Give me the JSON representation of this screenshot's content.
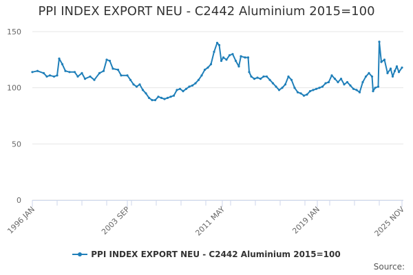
{
  "chart_data": {
    "type": "line",
    "title": "PPI INDEX EXPORT NEU - C2442 Aluminium 2015=100",
    "xlabel": "",
    "ylabel": "",
    "ylim": [
      0,
      150
    ],
    "yticks": [
      "0",
      "50",
      "100",
      "150"
    ],
    "xticks": [
      "1996 JAN",
      "2003 SEP",
      "2011 MAY",
      "2019 JAN",
      "2025 NOV"
    ],
    "grid": true,
    "legend_position": "bottom",
    "series": [
      {
        "name": "PPI INDEX EXPORT NEU - C2442 Aluminium 2015=100",
        "color": "#1f7fb9",
        "points": [
          [
            "1996-01",
            114
          ],
          [
            "1996-06",
            115
          ],
          [
            "1996-12",
            113
          ],
          [
            "1997-03",
            110
          ],
          [
            "1997-06",
            111
          ],
          [
            "1997-10",
            110
          ],
          [
            "1998-01",
            111
          ],
          [
            "1998-03",
            126
          ],
          [
            "1998-06",
            121
          ],
          [
            "1998-09",
            115
          ],
          [
            "1999-01",
            114
          ],
          [
            "1999-06",
            114
          ],
          [
            "1999-09",
            110
          ],
          [
            "2000-01",
            113
          ],
          [
            "2000-04",
            108
          ],
          [
            "2000-09",
            110
          ],
          [
            "2001-01",
            107
          ],
          [
            "2001-06",
            113
          ],
          [
            "2001-10",
            115
          ],
          [
            "2002-01",
            125
          ],
          [
            "2002-04",
            124
          ],
          [
            "2002-07",
            117
          ],
          [
            "2002-12",
            116
          ],
          [
            "2003-03",
            111
          ],
          [
            "2003-09",
            111
          ],
          [
            "2003-12",
            107
          ],
          [
            "2004-03",
            103
          ],
          [
            "2004-06",
            101
          ],
          [
            "2004-09",
            103
          ],
          [
            "2004-12",
            98
          ],
          [
            "2005-03",
            95
          ],
          [
            "2005-06",
            91
          ],
          [
            "2005-09",
            89
          ],
          [
            "2005-12",
            89
          ],
          [
            "2006-03",
            92
          ],
          [
            "2006-06",
            91
          ],
          [
            "2006-09",
            90
          ],
          [
            "2006-12",
            91
          ],
          [
            "2007-03",
            92
          ],
          [
            "2007-06",
            93
          ],
          [
            "2007-09",
            98
          ],
          [
            "2007-12",
            99
          ],
          [
            "2008-03",
            97
          ],
          [
            "2008-06",
            99
          ],
          [
            "2008-09",
            101
          ],
          [
            "2008-12",
            102
          ],
          [
            "2009-03",
            104
          ],
          [
            "2009-06",
            107
          ],
          [
            "2009-09",
            111
          ],
          [
            "2009-12",
            116
          ],
          [
            "2010-03",
            118
          ],
          [
            "2010-06",
            121
          ],
          [
            "2010-09",
            132
          ],
          [
            "2010-12",
            140
          ],
          [
            "2011-02",
            138
          ],
          [
            "2011-04",
            124
          ],
          [
            "2011-06",
            127
          ],
          [
            "2011-09",
            125
          ],
          [
            "2011-12",
            129
          ],
          [
            "2012-03",
            130
          ],
          [
            "2012-06",
            124
          ],
          [
            "2012-09",
            119
          ],
          [
            "2012-11",
            128
          ],
          [
            "2013-03",
            127
          ],
          [
            "2013-06",
            127
          ],
          [
            "2013-07",
            114
          ],
          [
            "2013-09",
            110
          ],
          [
            "2013-12",
            108
          ],
          [
            "2014-03",
            109
          ],
          [
            "2014-06",
            108
          ],
          [
            "2014-09",
            110
          ],
          [
            "2014-12",
            110
          ],
          [
            "2015-03",
            107
          ],
          [
            "2015-06",
            104
          ],
          [
            "2015-09",
            101
          ],
          [
            "2015-12",
            98
          ],
          [
            "2016-03",
            100
          ],
          [
            "2016-06",
            103
          ],
          [
            "2016-09",
            110
          ],
          [
            "2016-12",
            107
          ],
          [
            "2017-03",
            100
          ],
          [
            "2017-06",
            96
          ],
          [
            "2017-09",
            95
          ],
          [
            "2017-12",
            93
          ],
          [
            "2018-03",
            94
          ],
          [
            "2018-06",
            97
          ],
          [
            "2018-09",
            98
          ],
          [
            "2018-12",
            99
          ],
          [
            "2019-03",
            100
          ],
          [
            "2019-06",
            101
          ],
          [
            "2019-09",
            104
          ],
          [
            "2019-12",
            105
          ],
          [
            "2020-03",
            111
          ],
          [
            "2020-06",
            108
          ],
          [
            "2020-09",
            105
          ],
          [
            "2020-12",
            108
          ],
          [
            "2021-03",
            103
          ],
          [
            "2021-06",
            105
          ],
          [
            "2021-09",
            102
          ],
          [
            "2021-12",
            99
          ],
          [
            "2022-03",
            98
          ],
          [
            "2022-06",
            96
          ],
          [
            "2022-09",
            105
          ],
          [
            "2022-12",
            110
          ],
          [
            "2023-03",
            113
          ],
          [
            "2023-06",
            110
          ],
          [
            "2023-07",
            97
          ],
          [
            "2023-09",
            100
          ],
          [
            "2023-12",
            101
          ],
          [
            "2024-01",
            141
          ],
          [
            "2024-03",
            123
          ],
          [
            "2024-06",
            125
          ],
          [
            "2024-09",
            113
          ],
          [
            "2024-12",
            117
          ],
          [
            "2025-02",
            110
          ],
          [
            "2025-04",
            115
          ],
          [
            "2025-06",
            119
          ],
          [
            "2025-08",
            114
          ],
          [
            "2025-11",
            118
          ]
        ]
      }
    ]
  },
  "legend": {
    "label": "PPI INDEX EXPORT NEU - C2442 Aluminium 2015=100"
  },
  "source": {
    "label": "Source:"
  }
}
